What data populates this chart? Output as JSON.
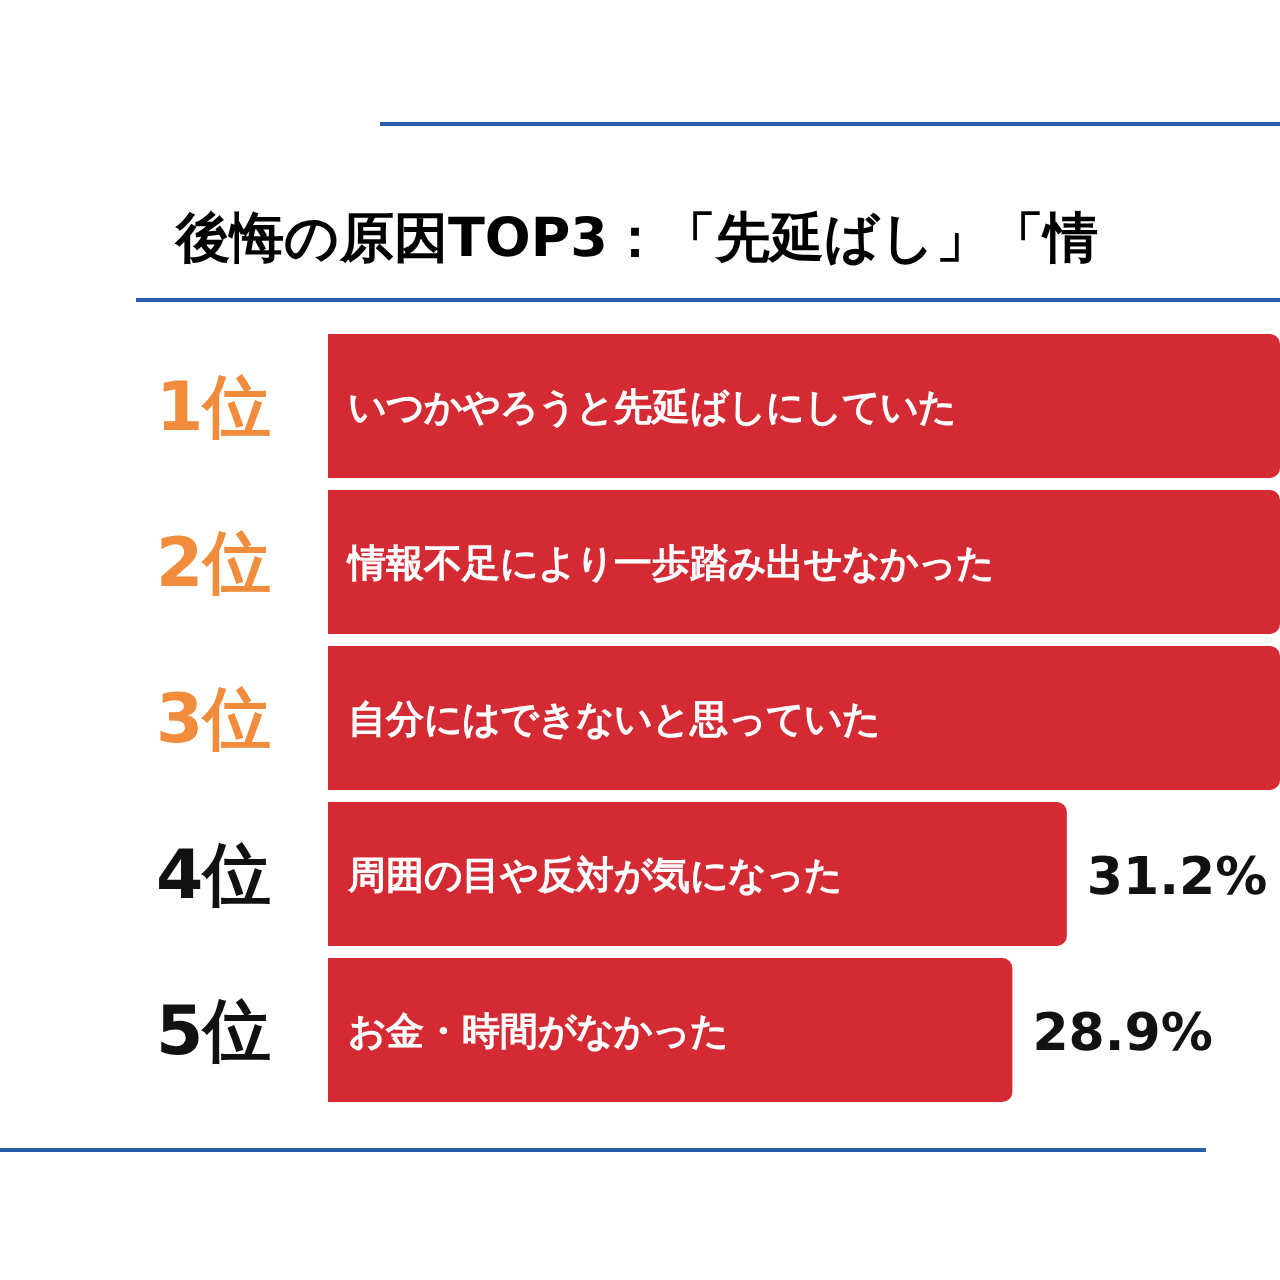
{
  "chart_data": {
    "type": "bar",
    "orientation": "horizontal",
    "title": "後悔の原因TOP3：「先延ばし」「情",
    "categories": [
      "いつかやろうと先延ばしにしていた",
      "情報不足により一歩踏み出せなかった",
      "自分にはできないと思っていた",
      "周囲の目や反対が気になった",
      "お金・時間がなかった"
    ],
    "values": [
      40.2,
      40.2,
      40.2,
      31.2,
      28.9
    ],
    "value_labels": [
      null,
      null,
      null,
      "31.2%",
      "28.9%"
    ],
    "color": "#d42a34",
    "xlim": [
      0,
      40.2
    ],
    "tick_labels": false,
    "annotations": [
      "1位",
      "2位",
      "3位",
      "4位",
      "5位"
    ]
  }
}
